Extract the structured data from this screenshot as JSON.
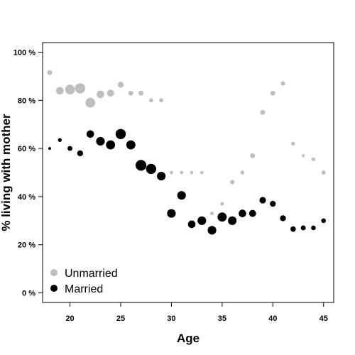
{
  "chart_data": {
    "type": "scatter",
    "title": "",
    "xlabel": "Age",
    "ylabel": "% living with mother",
    "xlim": [
      17.3,
      46.0
    ],
    "ylim": [
      -4,
      104
    ],
    "x_ticks": [
      20,
      25,
      30,
      35,
      40,
      45
    ],
    "y_ticks": [
      {
        "value": 0,
        "label": "0 %"
      },
      {
        "value": 20,
        "label": "20 %"
      },
      {
        "value": 40,
        "label": "40 %"
      },
      {
        "value": 60,
        "label": "60 %"
      },
      {
        "value": 80,
        "label": "80 %"
      },
      {
        "value": 100,
        "label": "100 %"
      }
    ],
    "grid": false,
    "legend_position": "bottom-left",
    "point_size_encodes": "sample size (relative weight)",
    "series": [
      {
        "name": "Unmarried",
        "color": "#bebebe",
        "points": [
          {
            "x": 18,
            "y": 91.5,
            "w": 0.3
          },
          {
            "x": 19,
            "y": 84,
            "w": 0.55
          },
          {
            "x": 20,
            "y": 84.5,
            "w": 0.75
          },
          {
            "x": 21,
            "y": 85,
            "w": 0.8
          },
          {
            "x": 22,
            "y": 79,
            "w": 0.75
          },
          {
            "x": 23,
            "y": 82.5,
            "w": 0.55
          },
          {
            "x": 24,
            "y": 83,
            "w": 0.5
          },
          {
            "x": 25,
            "y": 86.5,
            "w": 0.4
          },
          {
            "x": 26,
            "y": 83,
            "w": 0.3
          },
          {
            "x": 27,
            "y": 83,
            "w": 0.3
          },
          {
            "x": 28,
            "y": 80,
            "w": 0.22
          },
          {
            "x": 29,
            "y": 80,
            "w": 0.22
          },
          {
            "x": 30,
            "y": 50,
            "w": 0.15
          },
          {
            "x": 31,
            "y": 50,
            "w": 0.15
          },
          {
            "x": 32,
            "y": 50,
            "w": 0.15
          },
          {
            "x": 33,
            "y": 50,
            "w": 0.15
          },
          {
            "x": 34,
            "y": 33,
            "w": 0.18
          },
          {
            "x": 35,
            "y": 37,
            "w": 0.18
          },
          {
            "x": 36,
            "y": 46,
            "w": 0.25
          },
          {
            "x": 37,
            "y": 50,
            "w": 0.22
          },
          {
            "x": 38,
            "y": 57,
            "w": 0.3
          },
          {
            "x": 39,
            "y": 75,
            "w": 0.3
          },
          {
            "x": 40,
            "y": 83,
            "w": 0.3
          },
          {
            "x": 41,
            "y": 87,
            "w": 0.25
          },
          {
            "x": 42,
            "y": 62,
            "w": 0.2
          },
          {
            "x": 43,
            "y": 57,
            "w": 0.12
          },
          {
            "x": 44,
            "y": 55.5,
            "w": 0.2
          },
          {
            "x": 45,
            "y": 50,
            "w": 0.22
          }
        ]
      },
      {
        "name": "Married",
        "color": "#000000",
        "points": [
          {
            "x": 18,
            "y": 60,
            "w": 0.1
          },
          {
            "x": 19,
            "y": 63.5,
            "w": 0.2
          },
          {
            "x": 20,
            "y": 60,
            "w": 0.3
          },
          {
            "x": 21,
            "y": 58,
            "w": 0.4
          },
          {
            "x": 22,
            "y": 66,
            "w": 0.55
          },
          {
            "x": 23,
            "y": 63,
            "w": 0.65
          },
          {
            "x": 24,
            "y": 61.5,
            "w": 0.7
          },
          {
            "x": 25,
            "y": 66,
            "w": 0.8
          },
          {
            "x": 26,
            "y": 61.5,
            "w": 0.7
          },
          {
            "x": 27,
            "y": 53,
            "w": 0.85
          },
          {
            "x": 28,
            "y": 51.5,
            "w": 0.8
          },
          {
            "x": 29,
            "y": 48.5,
            "w": 0.65
          },
          {
            "x": 30,
            "y": 33,
            "w": 0.65
          },
          {
            "x": 31,
            "y": 40.5,
            "w": 0.65
          },
          {
            "x": 32,
            "y": 28.5,
            "w": 0.55
          },
          {
            "x": 33,
            "y": 30,
            "w": 0.65
          },
          {
            "x": 34,
            "y": 26,
            "w": 0.65
          },
          {
            "x": 35,
            "y": 31.5,
            "w": 0.7
          },
          {
            "x": 36,
            "y": 30,
            "w": 0.65
          },
          {
            "x": 37,
            "y": 33,
            "w": 0.55
          },
          {
            "x": 38,
            "y": 33,
            "w": 0.5
          },
          {
            "x": 39,
            "y": 38.5,
            "w": 0.45
          },
          {
            "x": 40,
            "y": 37,
            "w": 0.4
          },
          {
            "x": 41,
            "y": 31,
            "w": 0.4
          },
          {
            "x": 42,
            "y": 26.5,
            "w": 0.35
          },
          {
            "x": 43,
            "y": 27,
            "w": 0.3
          },
          {
            "x": 44,
            "y": 27,
            "w": 0.28
          },
          {
            "x": 45,
            "y": 30,
            "w": 0.28
          }
        ]
      }
    ]
  }
}
